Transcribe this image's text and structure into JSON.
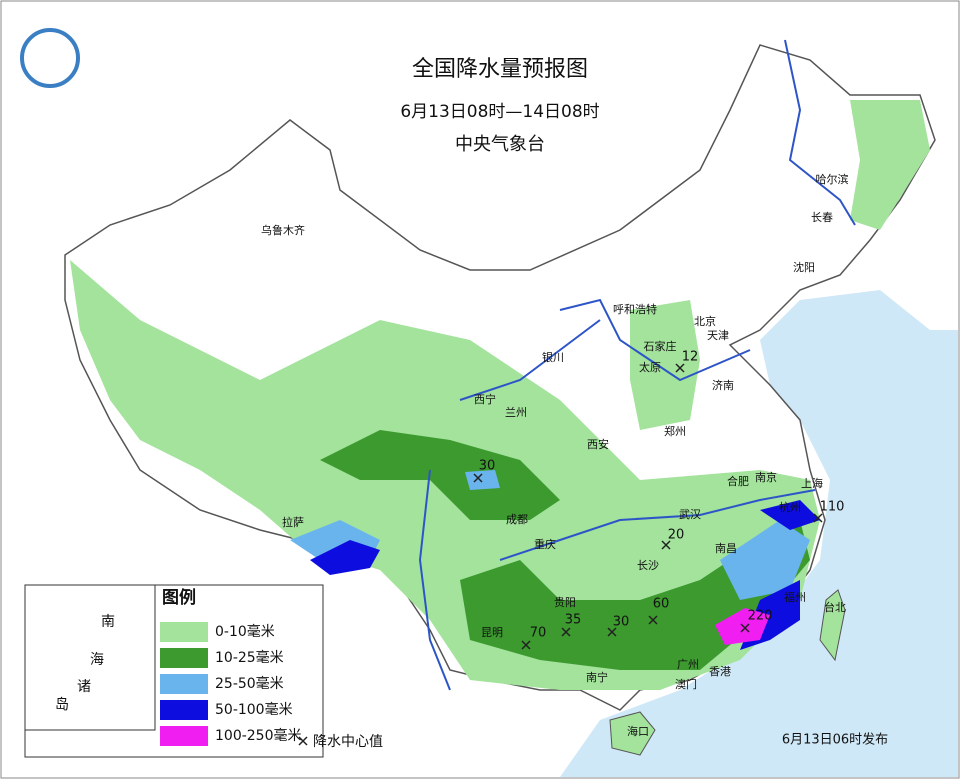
{
  "header": {
    "title": "全国降水量预报图",
    "subtitle": "6月13日08时—14日08时",
    "issuer": "中央气象台"
  },
  "cities": [
    "乌鲁木齐",
    "哈尔滨",
    "长春",
    "沈阳",
    "呼和浩特",
    "北京",
    "天津",
    "石家庄",
    "太原",
    "济南",
    "郑州",
    "西宁",
    "兰州",
    "银川",
    "西安",
    "拉萨",
    "成都",
    "重庆",
    "武汉",
    "合肥",
    "南京",
    "上海",
    "杭州",
    "长沙",
    "南昌",
    "贵阳",
    "昆明",
    "南宁",
    "广州",
    "福州",
    "台北",
    "香港",
    "澳门",
    "海口"
  ],
  "precipitation_centers": [
    12,
    30,
    20,
    110,
    70,
    35,
    30,
    60,
    220
  ],
  "legend": {
    "title": "图例",
    "items": [
      {
        "label": "0-10毫米",
        "color": "#a3e39c"
      },
      {
        "label": "10-25毫米",
        "color": "#3c9a2f"
      },
      {
        "label": "25-50毫米",
        "color": "#6ab4ee"
      },
      {
        "label": "50-100毫米",
        "color": "#0d0de0"
      },
      {
        "label": "100-250毫米",
        "color": "#f01ef0"
      }
    ],
    "center_marker": "降水中心值"
  },
  "inset": {
    "labels": [
      "南",
      "海",
      "诸",
      "岛"
    ]
  },
  "footer": "6月13日06时发布"
}
